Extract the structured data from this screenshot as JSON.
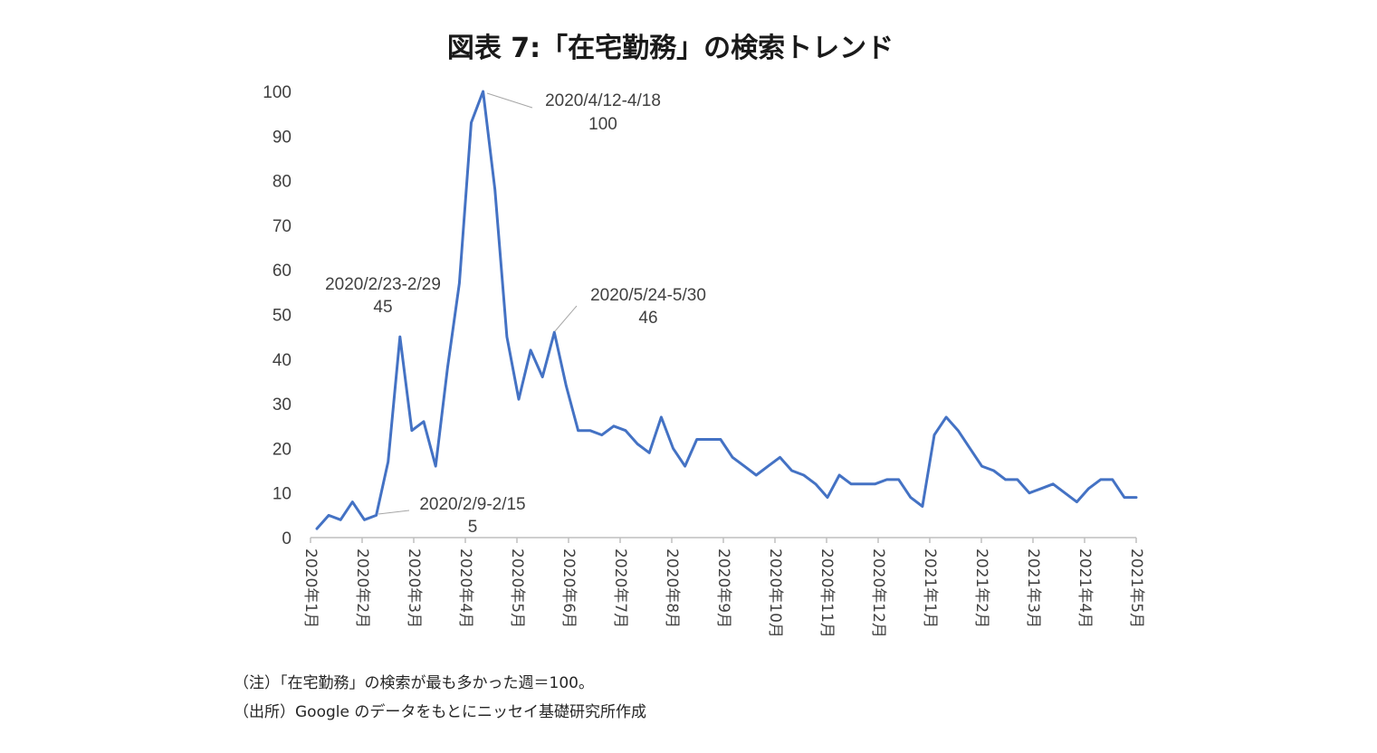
{
  "chart_data": {
    "type": "line",
    "title": "図表 7:「在宅勤務」の検索トレンド",
    "xlabel": "",
    "ylabel": "",
    "ylim": [
      0,
      100
    ],
    "yticks": [
      0,
      10,
      20,
      30,
      40,
      50,
      60,
      70,
      80,
      90,
      100
    ],
    "x_tick_labels": [
      "2020年1月",
      "2020年2月",
      "2020年3月",
      "2020年4月",
      "2020年5月",
      "2020年6月",
      "2020年7月",
      "2020年8月",
      "2020年9月",
      "2020年10月",
      "2020年11月",
      "2020年12月",
      "2021年1月",
      "2021年2月",
      "2021年3月",
      "2021年4月",
      "2021年5月"
    ],
    "grid": false,
    "legend": "none",
    "line_color": "#4472c4",
    "series": [
      {
        "values": [
          2,
          5,
          4,
          8,
          4,
          5,
          17,
          45,
          24,
          26,
          16,
          38,
          57,
          93,
          100,
          78,
          45,
          31,
          42,
          36,
          46,
          34,
          24,
          24,
          23,
          25,
          24,
          21,
          19,
          27,
          20,
          16,
          22,
          22,
          22,
          18,
          16,
          14,
          16,
          18,
          15,
          14,
          12,
          9,
          14,
          12,
          12,
          12,
          13,
          13,
          9,
          7,
          23,
          27,
          24,
          20,
          16,
          15,
          13,
          13,
          10,
          11,
          12,
          10,
          8,
          11,
          13,
          13,
          9,
          9
        ]
      }
    ],
    "annotations": [
      {
        "index": 5,
        "line1": "2020/2/9-2/15",
        "line2": "5"
      },
      {
        "index": 7,
        "line1": "2020/2/23-2/29",
        "line2": "45"
      },
      {
        "index": 14,
        "line1": "2020/4/12-4/18",
        "line2": "100"
      },
      {
        "index": 20,
        "line1": "2020/5/24-5/30",
        "line2": "46"
      }
    ]
  },
  "notes": {
    "note1": "（注）「在宅勤務」の検索が最も多かった週＝100。",
    "note2": "（出所）Google のデータをもとにニッセイ基礎研究所作成"
  }
}
